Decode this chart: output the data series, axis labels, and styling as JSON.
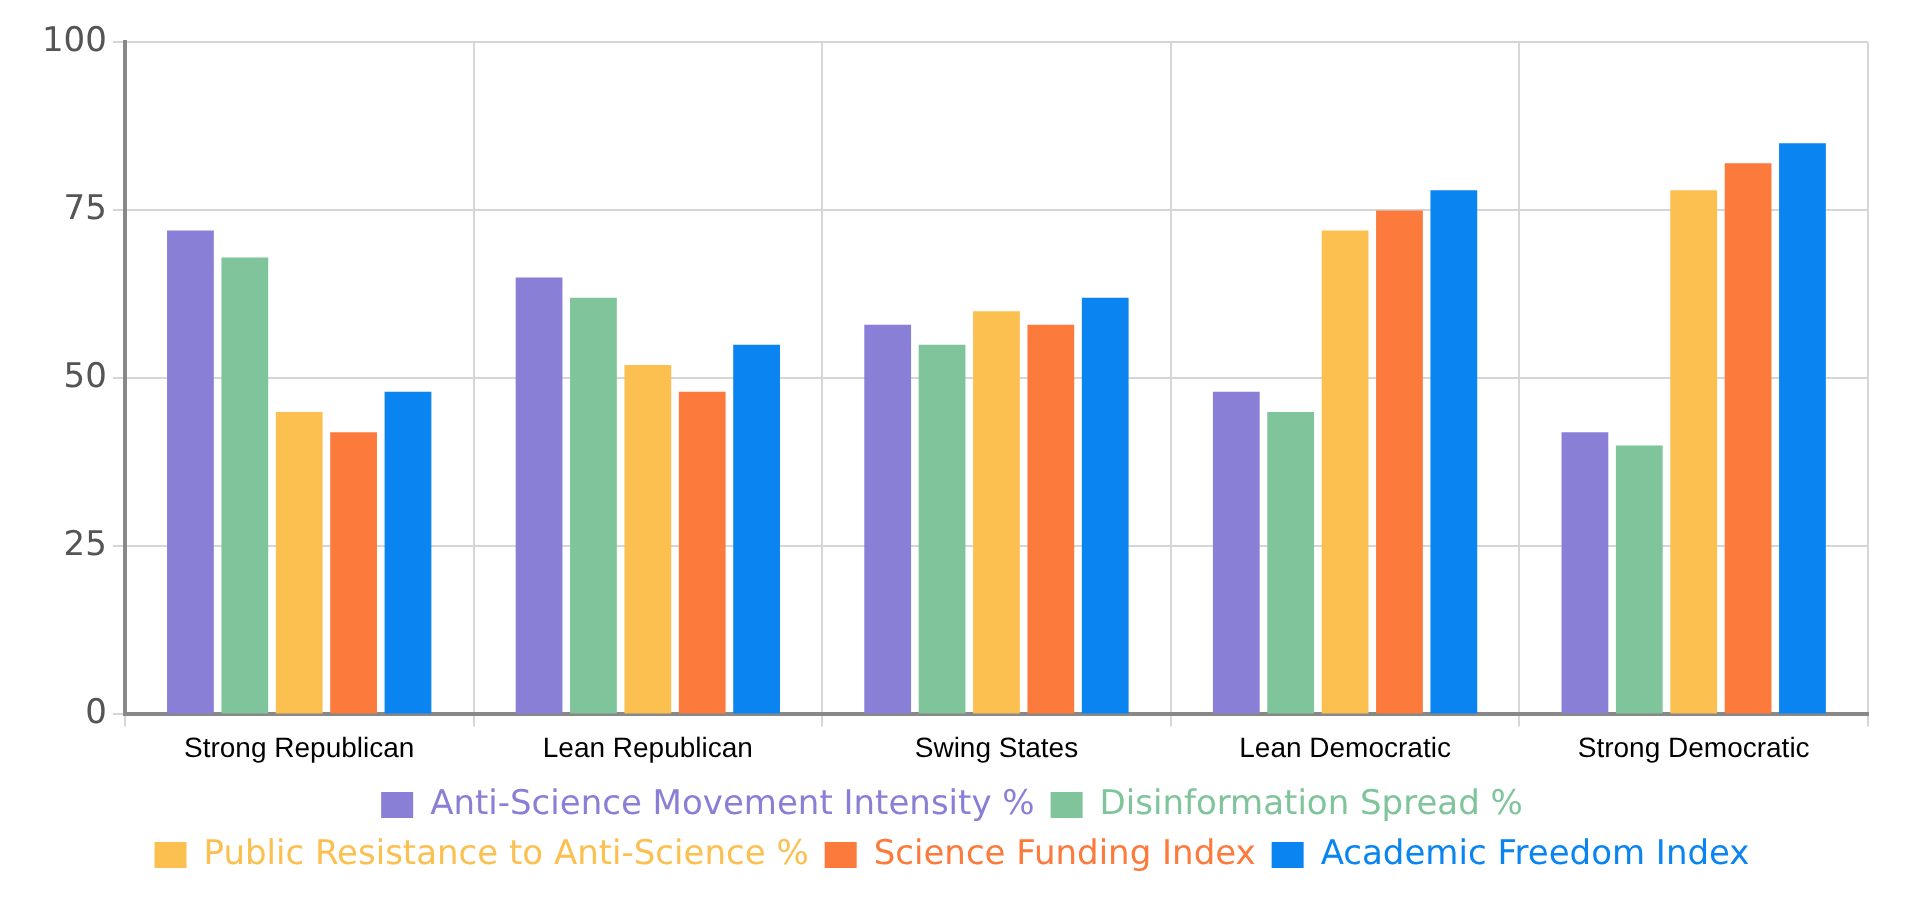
{
  "chart_data": {
    "type": "bar",
    "categories": [
      "Strong Republican",
      "Lean Republican",
      "Swing States",
      "Lean Democratic",
      "Strong Democratic"
    ],
    "series": [
      {
        "name": "Anti-Science Movement Intensity %",
        "color": "#8a7fd6",
        "values": [
          72,
          65,
          58,
          48,
          42
        ]
      },
      {
        "name": "Disinformation Spread %",
        "color": "#7fc49a",
        "values": [
          68,
          62,
          55,
          45,
          40
        ]
      },
      {
        "name": "Public Resistance to Anti-Science %",
        "color": "#fbc04f",
        "values": [
          45,
          52,
          60,
          72,
          78
        ]
      },
      {
        "name": "Science Funding Index",
        "color": "#fb7a3c",
        "values": [
          42,
          48,
          58,
          75,
          82
        ]
      },
      {
        "name": "Academic Freedom Index",
        "color": "#0a84f0",
        "values": [
          48,
          55,
          62,
          78,
          85
        ]
      }
    ],
    "ylim": [
      0,
      100
    ],
    "yticks": [
      0,
      25,
      50,
      75,
      100
    ],
    "grid": true,
    "legend": "bottom"
  }
}
